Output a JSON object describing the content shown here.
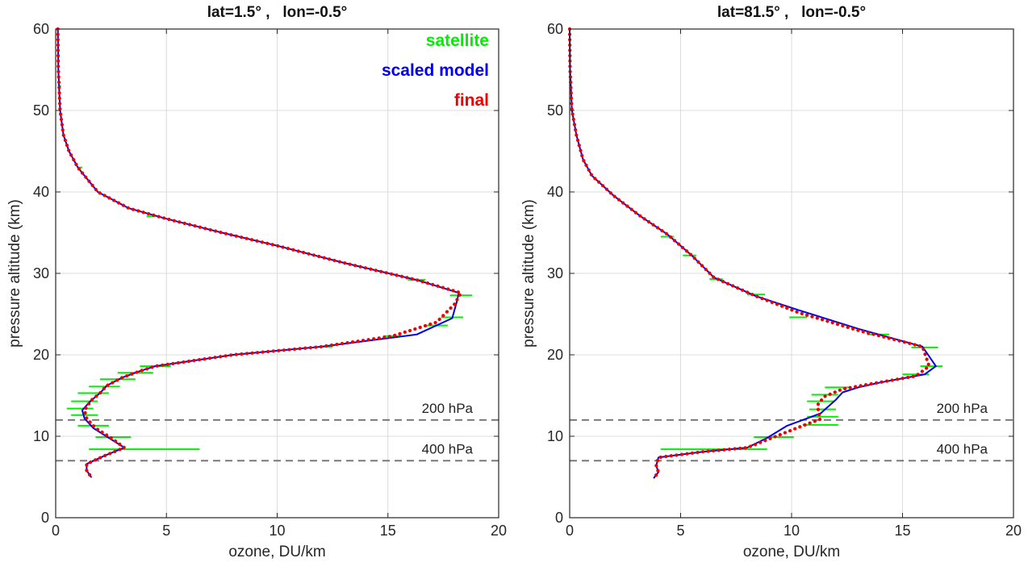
{
  "chart_data": [
    {
      "type": "line",
      "title": "lat=1.5° ,   lon=-0.5°",
      "xlabel": "ozone, DU/km",
      "ylabel": "pressure altitude (km)",
      "xlim": [
        0,
        20
      ],
      "ylim": [
        0,
        60
      ],
      "xticks": [
        0,
        5,
        10,
        15,
        20
      ],
      "yticks": [
        0,
        10,
        20,
        30,
        40,
        50,
        60
      ],
      "grid": true,
      "legend": {
        "position": "top-right",
        "entries": [
          "satellite",
          "scaled model",
          "final"
        ]
      },
      "reference_lines": [
        {
          "y": 12,
          "label": "200 hPa"
        },
        {
          "y": 7,
          "label": "400 hPa"
        }
      ],
      "series": [
        {
          "name": "satellite",
          "color": "#00ee00",
          "style": "solid-with-horizontal-errorbars",
          "points": [
            {
              "x": 1.1,
              "y": 13.4,
              "xerr": 0.6
            },
            {
              "x": 1.3,
              "y": 12.6,
              "xerr": 0.6
            },
            {
              "x": 1.7,
              "y": 11.3,
              "xerr": 0.7
            },
            {
              "x": 2.6,
              "y": 9.9,
              "xerr": 0.8
            },
            {
              "x": 4.0,
              "y": 8.4,
              "xerr": 2.5
            },
            {
              "x": 1.3,
              "y": 14.3,
              "xerr": 0.6
            },
            {
              "x": 1.7,
              "y": 15.3,
              "xerr": 0.7
            },
            {
              "x": 2.2,
              "y": 16.1,
              "xerr": 0.7
            },
            {
              "x": 2.8,
              "y": 17.0,
              "xerr": 0.8
            },
            {
              "x": 3.6,
              "y": 17.8,
              "xerr": 0.8
            },
            {
              "x": 4.5,
              "y": 18.6,
              "xerr": 0.7
            },
            {
              "x": 12.2,
              "y": 21.0,
              "xerr": 0.3
            },
            {
              "x": 15.2,
              "y": 22.3,
              "xerr": 0.4
            },
            {
              "x": 17.2,
              "y": 23.6,
              "xerr": 0.5
            },
            {
              "x": 17.9,
              "y": 24.6,
              "xerr": 0.5
            },
            {
              "x": 18.3,
              "y": 27.3,
              "xerr": 0.5
            },
            {
              "x": 16.3,
              "y": 29.2,
              "xerr": 0.4
            },
            {
              "x": 4.3,
              "y": 37.0,
              "xerr": 0.2
            },
            {
              "x": 1.1,
              "y": 43.0,
              "xerr": 0.1
            },
            {
              "x": 0.2,
              "y": 53.0,
              "xerr": 0.05
            }
          ]
        },
        {
          "name": "scaled model",
          "color": "#0000ee",
          "style": "solid",
          "points": [
            {
              "x": 0.1,
              "y": 60
            },
            {
              "x": 0.12,
              "y": 55
            },
            {
              "x": 0.2,
              "y": 50
            },
            {
              "x": 0.35,
              "y": 47
            },
            {
              "x": 0.6,
              "y": 45
            },
            {
              "x": 1.0,
              "y": 43
            },
            {
              "x": 1.9,
              "y": 40
            },
            {
              "x": 3.3,
              "y": 38
            },
            {
              "x": 5,
              "y": 36.7
            },
            {
              "x": 7.5,
              "y": 35
            },
            {
              "x": 10,
              "y": 33.4
            },
            {
              "x": 13,
              "y": 31.3
            },
            {
              "x": 16.3,
              "y": 29.2
            },
            {
              "x": 18.2,
              "y": 27.6
            },
            {
              "x": 18.1,
              "y": 26.4
            },
            {
              "x": 17.9,
              "y": 24.5
            },
            {
              "x": 16.3,
              "y": 22.5
            },
            {
              "x": 12,
              "y": 21.0
            },
            {
              "x": 8,
              "y": 20.0
            },
            {
              "x": 4.5,
              "y": 18.6
            },
            {
              "x": 3.8,
              "y": 18.0
            },
            {
              "x": 3.0,
              "y": 17.2
            },
            {
              "x": 2.3,
              "y": 16.2
            },
            {
              "x": 2.0,
              "y": 15.3
            },
            {
              "x": 1.6,
              "y": 14.4
            },
            {
              "x": 1.2,
              "y": 13.2
            },
            {
              "x": 1.3,
              "y": 12.2
            },
            {
              "x": 1.7,
              "y": 11.0
            },
            {
              "x": 2.4,
              "y": 9.8
            },
            {
              "x": 3.1,
              "y": 8.6
            },
            {
              "x": 2.2,
              "y": 7.6
            },
            {
              "x": 1.4,
              "y": 6.6
            },
            {
              "x": 1.4,
              "y": 5.8
            },
            {
              "x": 1.6,
              "y": 5.0
            }
          ]
        },
        {
          "name": "final",
          "color": "#ee0000",
          "style": "dotted",
          "points": [
            {
              "x": 0.1,
              "y": 60
            },
            {
              "x": 0.12,
              "y": 55
            },
            {
              "x": 0.2,
              "y": 50
            },
            {
              "x": 0.35,
              "y": 47
            },
            {
              "x": 0.6,
              "y": 45
            },
            {
              "x": 1.0,
              "y": 43
            },
            {
              "x": 1.9,
              "y": 40
            },
            {
              "x": 3.3,
              "y": 38
            },
            {
              "x": 5,
              "y": 36.7
            },
            {
              "x": 7.5,
              "y": 35
            },
            {
              "x": 10,
              "y": 33.4
            },
            {
              "x": 13,
              "y": 31.3
            },
            {
              "x": 16.3,
              "y": 29.2
            },
            {
              "x": 18.3,
              "y": 27.6
            },
            {
              "x": 18.0,
              "y": 26.2
            },
            {
              "x": 17.2,
              "y": 24.0
            },
            {
              "x": 15.2,
              "y": 22.3
            },
            {
              "x": 12,
              "y": 21.0
            },
            {
              "x": 8,
              "y": 20.0
            },
            {
              "x": 4.5,
              "y": 18.6
            },
            {
              "x": 3.8,
              "y": 18.0
            },
            {
              "x": 3.0,
              "y": 17.2
            },
            {
              "x": 2.3,
              "y": 16.2
            },
            {
              "x": 2.0,
              "y": 15.3
            },
            {
              "x": 1.6,
              "y": 14.4
            },
            {
              "x": 1.3,
              "y": 13.2
            },
            {
              "x": 1.4,
              "y": 12.2
            },
            {
              "x": 1.8,
              "y": 11.0
            },
            {
              "x": 2.5,
              "y": 9.8
            },
            {
              "x": 3.1,
              "y": 8.6
            },
            {
              "x": 2.2,
              "y": 7.6
            },
            {
              "x": 1.4,
              "y": 6.6
            },
            {
              "x": 1.4,
              "y": 5.8
            },
            {
              "x": 1.6,
              "y": 5.0
            }
          ]
        }
      ]
    },
    {
      "type": "line",
      "title": "lat=81.5° ,   lon=-0.5°",
      "xlabel": "ozone, DU/km",
      "ylabel": "pressure altitude (km)",
      "xlim": [
        0,
        20
      ],
      "ylim": [
        0,
        60
      ],
      "xticks": [
        0,
        5,
        10,
        15,
        20
      ],
      "yticks": [
        0,
        10,
        20,
        30,
        40,
        50,
        60
      ],
      "grid": true,
      "reference_lines": [
        {
          "y": 12,
          "label": "200 hPa"
        },
        {
          "y": 7,
          "label": "400 hPa"
        }
      ],
      "series": [
        {
          "name": "satellite",
          "color": "#00ee00",
          "style": "solid-with-horizontal-errorbars",
          "points": [
            {
              "x": 6.5,
              "y": 8.4,
              "xerr": 2.4
            },
            {
              "x": 9.2,
              "y": 9.9,
              "xerr": 0.9
            },
            {
              "x": 11.3,
              "y": 11.4,
              "xerr": 0.8
            },
            {
              "x": 11.4,
              "y": 12.4,
              "xerr": 0.7
            },
            {
              "x": 11.4,
              "y": 13.3,
              "xerr": 0.6
            },
            {
              "x": 11.3,
              "y": 14.3,
              "xerr": 0.6
            },
            {
              "x": 11.5,
              "y": 15.1,
              "xerr": 0.6
            },
            {
              "x": 12.1,
              "y": 16.0,
              "xerr": 0.6
            },
            {
              "x": 15.6,
              "y": 17.6,
              "xerr": 0.6
            },
            {
              "x": 16.3,
              "y": 18.6,
              "xerr": 0.5
            },
            {
              "x": 16.0,
              "y": 20.9,
              "xerr": 0.6
            },
            {
              "x": 13.9,
              "y": 22.5,
              "xerr": 0.5
            },
            {
              "x": 10.3,
              "y": 24.6,
              "xerr": 0.4
            },
            {
              "x": 8.4,
              "y": 27.4,
              "xerr": 0.4
            },
            {
              "x": 6.6,
              "y": 29.3,
              "xerr": 0.3
            },
            {
              "x": 5.4,
              "y": 32.2,
              "xerr": 0.3
            },
            {
              "x": 4.4,
              "y": 34.5,
              "xerr": 0.3
            }
          ]
        },
        {
          "name": "scaled model",
          "color": "#0000ee",
          "style": "solid",
          "points": [
            {
              "x": 0.0,
              "y": 60
            },
            {
              "x": 0.02,
              "y": 55
            },
            {
              "x": 0.1,
              "y": 50
            },
            {
              "x": 0.3,
              "y": 47
            },
            {
              "x": 0.6,
              "y": 44
            },
            {
              "x": 1.0,
              "y": 42
            },
            {
              "x": 2.0,
              "y": 39.5
            },
            {
              "x": 3.2,
              "y": 37
            },
            {
              "x": 4.4,
              "y": 34.8
            },
            {
              "x": 5.5,
              "y": 32.2
            },
            {
              "x": 6.5,
              "y": 29.5
            },
            {
              "x": 8.4,
              "y": 27.2
            },
            {
              "x": 10.3,
              "y": 25.5
            },
            {
              "x": 13.0,
              "y": 23.2
            },
            {
              "x": 15.9,
              "y": 21.0
            },
            {
              "x": 16.5,
              "y": 18.6
            },
            {
              "x": 16.0,
              "y": 17.6
            },
            {
              "x": 14.0,
              "y": 16.6
            },
            {
              "x": 13.0,
              "y": 16.0
            },
            {
              "x": 12.3,
              "y": 15.4
            },
            {
              "x": 12.0,
              "y": 14.5
            },
            {
              "x": 11.3,
              "y": 12.8
            },
            {
              "x": 10.5,
              "y": 12.0
            },
            {
              "x": 9.8,
              "y": 11.3
            },
            {
              "x": 8.9,
              "y": 9.8
            },
            {
              "x": 8.0,
              "y": 8.6
            },
            {
              "x": 6.0,
              "y": 8.1
            },
            {
              "x": 4.0,
              "y": 7.4
            },
            {
              "x": 3.9,
              "y": 6.4
            },
            {
              "x": 4.0,
              "y": 5.6
            },
            {
              "x": 3.8,
              "y": 4.9
            }
          ]
        },
        {
          "name": "final",
          "color": "#ee0000",
          "style": "dotted",
          "points": [
            {
              "x": 0.0,
              "y": 60
            },
            {
              "x": 0.02,
              "y": 55
            },
            {
              "x": 0.1,
              "y": 50
            },
            {
              "x": 0.3,
              "y": 47
            },
            {
              "x": 0.6,
              "y": 44
            },
            {
              "x": 1.0,
              "y": 42
            },
            {
              "x": 2.0,
              "y": 39.5
            },
            {
              "x": 3.2,
              "y": 37
            },
            {
              "x": 4.4,
              "y": 34.8
            },
            {
              "x": 5.5,
              "y": 32.2
            },
            {
              "x": 6.5,
              "y": 29.5
            },
            {
              "x": 8.4,
              "y": 27.2
            },
            {
              "x": 10.3,
              "y": 25.2
            },
            {
              "x": 13.0,
              "y": 23.0
            },
            {
              "x": 15.9,
              "y": 21.0
            },
            {
              "x": 16.2,
              "y": 18.6
            },
            {
              "x": 15.6,
              "y": 17.4
            },
            {
              "x": 13.5,
              "y": 16.4
            },
            {
              "x": 12.3,
              "y": 15.8
            },
            {
              "x": 11.5,
              "y": 14.9
            },
            {
              "x": 11.2,
              "y": 14.0
            },
            {
              "x": 11.2,
              "y": 13.0
            },
            {
              "x": 11.3,
              "y": 12.1
            },
            {
              "x": 10.5,
              "y": 11.3
            },
            {
              "x": 9.3,
              "y": 10.0
            },
            {
              "x": 8.0,
              "y": 8.6
            },
            {
              "x": 6.0,
              "y": 8.1
            },
            {
              "x": 4.0,
              "y": 7.4
            },
            {
              "x": 3.9,
              "y": 6.4
            },
            {
              "x": 4.0,
              "y": 5.6
            },
            {
              "x": 3.8,
              "y": 4.9
            }
          ]
        }
      ]
    }
  ]
}
